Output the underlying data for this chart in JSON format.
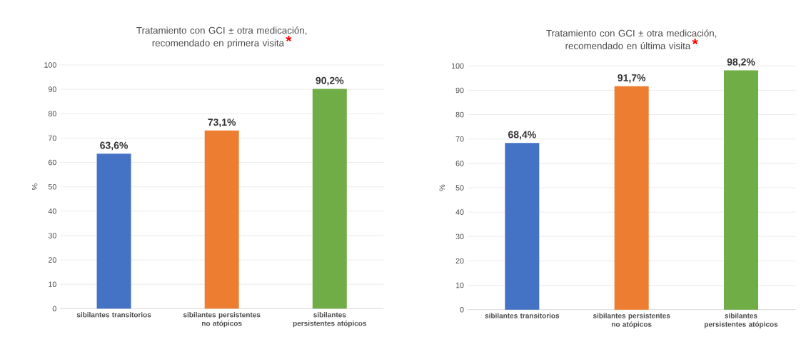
{
  "chart_data": [
    {
      "type": "bar",
      "title": "Tratamiento con GCI ± otra medicación, recomendado en primera visita",
      "annotations": [
        "*"
      ],
      "ylabel": "%",
      "categories": [
        "sibilantes transitorios",
        "sibilantes persistentes no atópicos",
        "sibilantes persistentes atópicos"
      ],
      "values": [
        63.6,
        73.1,
        90.2
      ],
      "value_labels": [
        "63,6%",
        "73,1%",
        "90,2%"
      ],
      "colors": [
        "#4472c4",
        "#ed7d31",
        "#70ad47"
      ],
      "ylim": [
        0,
        100
      ],
      "yticks": [
        0,
        10,
        20,
        30,
        40,
        50,
        60,
        70,
        80,
        90,
        100
      ],
      "grid": "y"
    },
    {
      "type": "bar",
      "title": "Tratamiento con GCI ± otra medicación, recomendado en última visita",
      "annotations": [
        "*"
      ],
      "ylabel": "%",
      "categories": [
        "sibilantes transitorios",
        "sibilantes persistentes no atópicos",
        "sibilantes persistentes atópicos"
      ],
      "values": [
        68.4,
        91.7,
        98.2
      ],
      "value_labels": [
        "68,4%",
        "91,7%",
        "98,2%"
      ],
      "colors": [
        "#4472c4",
        "#ed7d31",
        "#70ad47"
      ],
      "ylim": [
        0,
        100
      ],
      "yticks": [
        0,
        10,
        20,
        30,
        40,
        50,
        60,
        70,
        80,
        90,
        100
      ],
      "grid": "y"
    }
  ]
}
